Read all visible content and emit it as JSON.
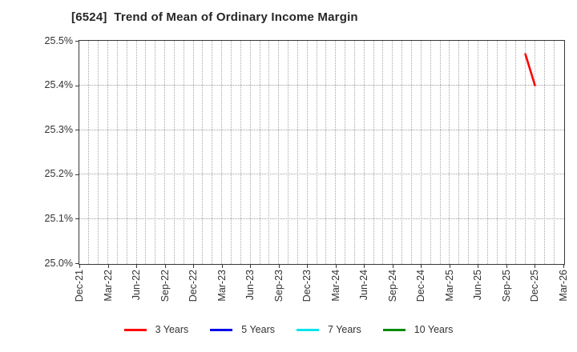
{
  "chart_data": {
    "type": "line",
    "title": "[6524]  Trend of Mean of Ordinary Income Margin",
    "xlabel": "",
    "ylabel": "",
    "ylim": [
      25.0,
      25.5
    ],
    "ytick_step": 0.1,
    "ytick_labels": [
      "25.0%",
      "25.1%",
      "25.2%",
      "25.3%",
      "25.4%",
      "25.5%"
    ],
    "xtick_labels": [
      "Dec-21",
      "Mar-22",
      "Jun-22",
      "Sep-22",
      "Dec-22",
      "Mar-23",
      "Jun-23",
      "Sep-23",
      "Dec-23",
      "Mar-24",
      "Jun-24",
      "Sep-24",
      "Dec-24",
      "Mar-25",
      "Jun-25",
      "Sep-25",
      "Dec-25",
      "Mar-26"
    ],
    "months_per_xtick": 3,
    "total_month_intervals": 51,
    "grid": {
      "vertical": "monthly dotted",
      "horizontal": "every 0.1% dotted",
      "on": true
    },
    "legend_position": "bottom-center",
    "series": [
      {
        "name": "3 Years",
        "color": "#ff0000",
        "points": [
          {
            "month": "Nov-25",
            "month_index": 47,
            "value": 25.47
          },
          {
            "month": "Dec-25",
            "month_index": 48,
            "value": 25.4
          }
        ]
      },
      {
        "name": "5 Years",
        "color": "#0000ee",
        "points": []
      },
      {
        "name": "7 Years",
        "color": "#00e5ee",
        "points": []
      },
      {
        "name": "10 Years",
        "color": "#0a8a0a",
        "points": []
      }
    ]
  }
}
